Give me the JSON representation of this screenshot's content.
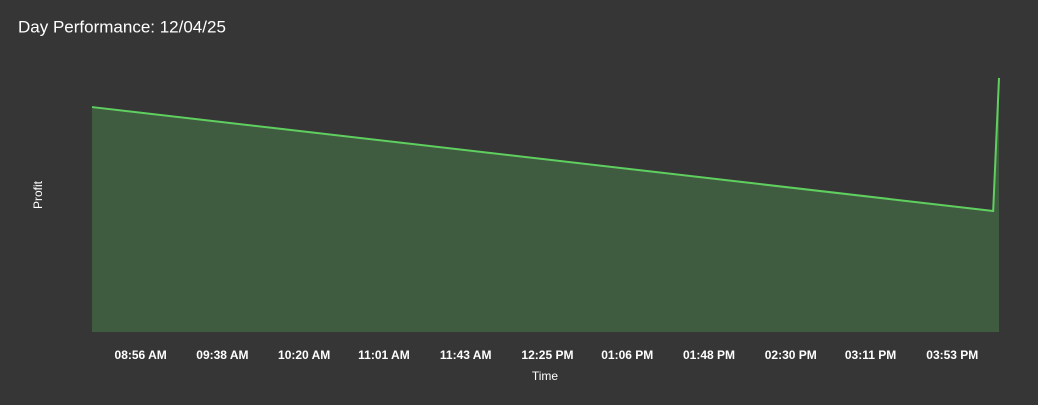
{
  "chart_data": {
    "type": "area",
    "title": "Day Performance: 12/04/25",
    "x_label": "Time",
    "y_label": "Profit",
    "x": [
      511,
      974,
      977
    ],
    "values": [
      82.7,
      44.5,
      93.4
    ],
    "color": "#5fcf5f",
    "xlim": [
      511,
      977
    ],
    "xticks": [
      {
        "value": 536,
        "label": "08:56 AM"
      },
      {
        "value": 578,
        "label": "09:38 AM"
      },
      {
        "value": 620,
        "label": "10:20 AM"
      },
      {
        "value": 661,
        "label": "11:01 AM"
      },
      {
        "value": 703,
        "label": "11:43 AM"
      },
      {
        "value": 745,
        "label": "12:25 PM"
      },
      {
        "value": 786,
        "label": "01:06 PM"
      },
      {
        "value": 828,
        "label": "01:48 PM"
      },
      {
        "value": 870,
        "label": "02:30 PM"
      },
      {
        "value": 911,
        "label": "03:11 PM"
      },
      {
        "value": 953,
        "label": "03:53 PM"
      }
    ],
    "ylim": [
      0,
      100
    ]
  }
}
